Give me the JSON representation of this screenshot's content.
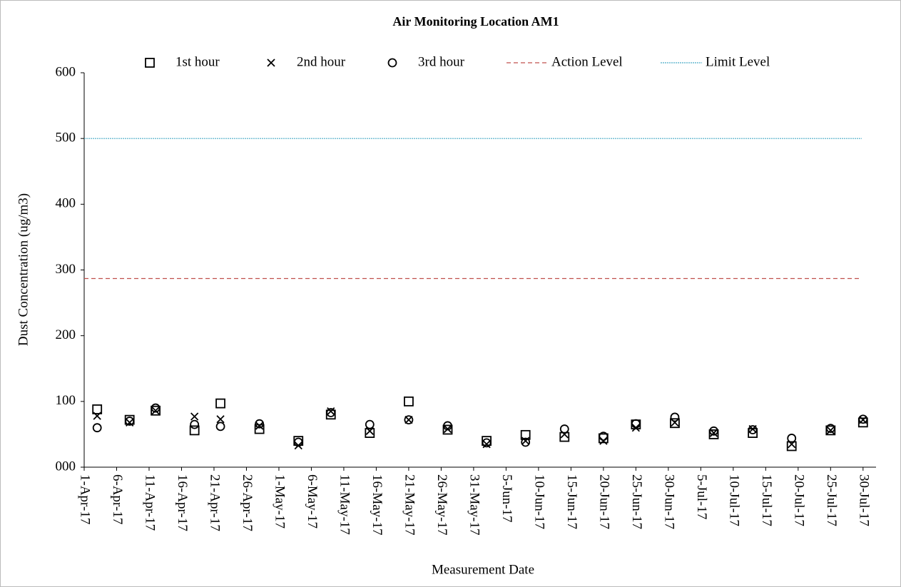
{
  "chart_data": {
    "type": "scatter",
    "title": "Air Monitoring Location AM1",
    "xlabel": "Measurement Date",
    "ylabel": "Dust Concentration (ug/m3)",
    "x": [
      "2017-04-03",
      "2017-04-08",
      "2017-04-12",
      "2017-04-18",
      "2017-04-22",
      "2017-04-28",
      "2017-05-04",
      "2017-05-09",
      "2017-05-15",
      "2017-05-21",
      "2017-05-27",
      "2017-06-02",
      "2017-06-08",
      "2017-06-14",
      "2017-06-20",
      "2017-06-25",
      "2017-07-01",
      "2017-07-07",
      "2017-07-13",
      "2017-07-19",
      "2017-07-25",
      "2017-07-30"
    ],
    "series": [
      {
        "name": "1st hour",
        "color": "#000000",
        "marker": "square",
        "values": [
          88,
          72,
          86,
          56,
          97,
          58,
          40,
          80,
          52,
          100,
          57,
          40,
          49,
          46,
          44,
          65,
          67,
          50,
          52,
          32,
          56,
          68
        ]
      },
      {
        "name": "2nd hour",
        "color": "#000000",
        "marker": "x",
        "values": [
          78,
          68,
          86,
          77,
          73,
          63,
          33,
          85,
          55,
          72,
          58,
          35,
          40,
          50,
          40,
          60,
          68,
          52,
          58,
          35,
          56,
          72
        ]
      },
      {
        "name": "3rd hour",
        "color": "#000000",
        "marker": "circle",
        "values": [
          60,
          70,
          90,
          65,
          62,
          66,
          38,
          83,
          65,
          72,
          63,
          37,
          38,
          58,
          47,
          66,
          76,
          55,
          57,
          44,
          59,
          73
        ]
      }
    ],
    "reference_lines": [
      {
        "name": "Action Level",
        "value": 287,
        "color": "#c0504d",
        "dash": "6,4"
      },
      {
        "name": "Limit Level",
        "value": 500,
        "color": "#4bacc6",
        "dash": "2,1"
      }
    ],
    "xlim": [
      "2017-04-01",
      "2017-08-01"
    ],
    "xticks": [
      {
        "value": "2017-04-01",
        "label": "1-Apr-17"
      },
      {
        "value": "2017-04-06",
        "label": "6-Apr-17"
      },
      {
        "value": "2017-04-11",
        "label": "11-Apr-17"
      },
      {
        "value": "2017-04-16",
        "label": "16-Apr-17"
      },
      {
        "value": "2017-04-21",
        "label": "21-Apr-17"
      },
      {
        "value": "2017-04-26",
        "label": "26-Apr-17"
      },
      {
        "value": "2017-05-01",
        "label": "1-May-17"
      },
      {
        "value": "2017-05-06",
        "label": "6-May-17"
      },
      {
        "value": "2017-05-11",
        "label": "11-May-17"
      },
      {
        "value": "2017-05-16",
        "label": "16-May-17"
      },
      {
        "value": "2017-05-21",
        "label": "21-May-17"
      },
      {
        "value": "2017-05-26",
        "label": "26-May-17"
      },
      {
        "value": "2017-05-31",
        "label": "31-May-17"
      },
      {
        "value": "2017-06-05",
        "label": "5-Jun-17"
      },
      {
        "value": "2017-06-10",
        "label": "10-Jun-17"
      },
      {
        "value": "2017-06-15",
        "label": "15-Jun-17"
      },
      {
        "value": "2017-06-20",
        "label": "20-Jun-17"
      },
      {
        "value": "2017-06-25",
        "label": "25-Jun-17"
      },
      {
        "value": "2017-06-30",
        "label": "30-Jun-17"
      },
      {
        "value": "2017-07-05",
        "label": "5-Jul-17"
      },
      {
        "value": "2017-07-10",
        "label": "10-Jul-17"
      },
      {
        "value": "2017-07-15",
        "label": "15-Jul-17"
      },
      {
        "value": "2017-07-20",
        "label": "20-Jul-17"
      },
      {
        "value": "2017-07-25",
        "label": "25-Jul-17"
      },
      {
        "value": "2017-07-30",
        "label": "30-Jul-17"
      }
    ],
    "ylim": [
      0,
      600
    ],
    "yticks": [
      {
        "value": 0,
        "label": "000"
      },
      100,
      200,
      300,
      400,
      500,
      600
    ],
    "grid": false,
    "legend": "top"
  }
}
